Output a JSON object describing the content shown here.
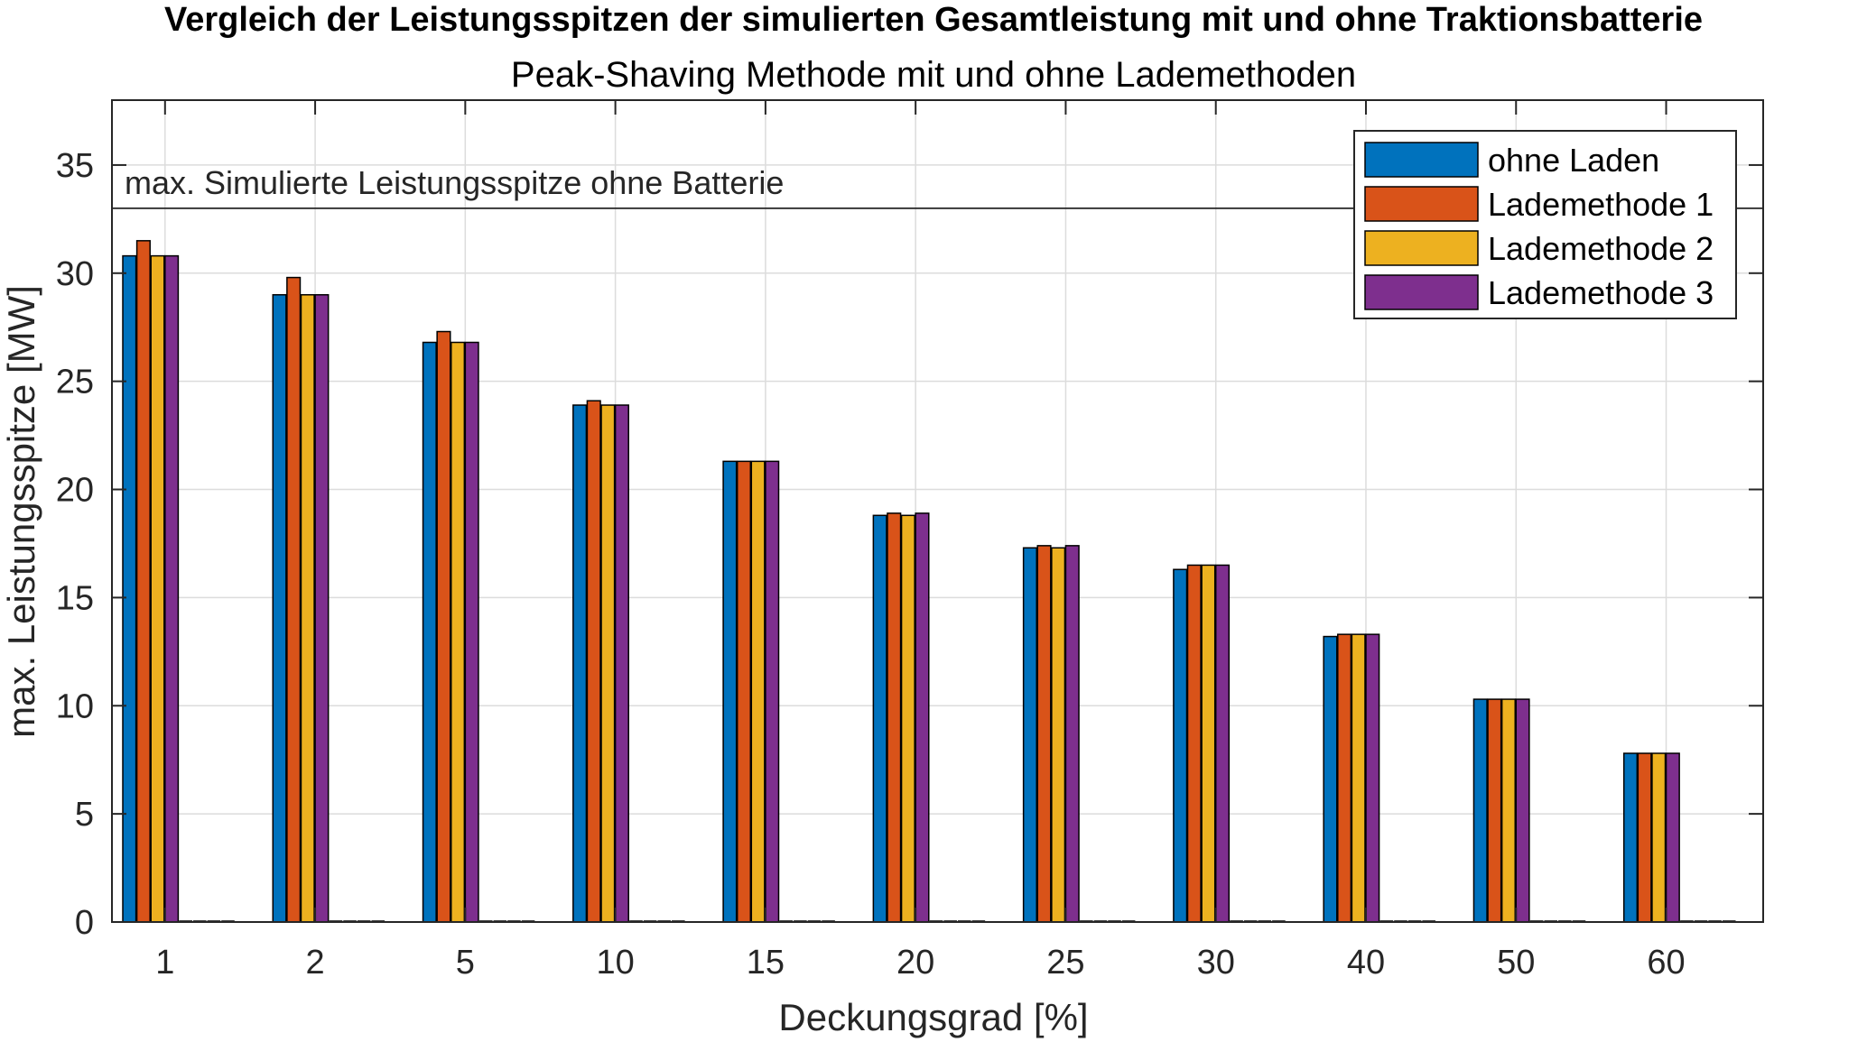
{
  "chart_data": {
    "type": "bar",
    "title": "Vergleich der Leistungsspitzen der simulierten Gesamtleistung mit und ohne Traktionsbatterie",
    "subtitle": "Peak-Shaving Methode mit und ohne Lademethoden",
    "xlabel": "Deckungsgrad [%]",
    "ylabel": "max. Leistungsspitze [MW]",
    "ylim": [
      0,
      38
    ],
    "yticks": [
      "0",
      "5",
      "10",
      "15",
      "20",
      "25",
      "30",
      "35"
    ],
    "grid": true,
    "legend_position": "top-right",
    "categories": [
      "1",
      "2",
      "5",
      "10",
      "15",
      "20",
      "25",
      "30",
      "40",
      "50",
      "60"
    ],
    "series": [
      {
        "name": "ohne Laden",
        "color": "#0072BD",
        "values": [
          30.8,
          29.0,
          26.8,
          23.9,
          21.3,
          18.8,
          17.3,
          16.3,
          13.2,
          10.3,
          7.8
        ]
      },
      {
        "name": "Lademethode 1",
        "color": "#D95319",
        "values": [
          31.5,
          29.8,
          27.3,
          24.1,
          21.3,
          18.9,
          17.4,
          16.5,
          13.3,
          10.3,
          7.8
        ]
      },
      {
        "name": "Lademethode 2",
        "color": "#EDB120",
        "values": [
          30.8,
          29.0,
          26.8,
          23.9,
          21.3,
          18.8,
          17.3,
          16.5,
          13.3,
          10.3,
          7.8
        ]
      },
      {
        "name": "Lademethode 3",
        "color": "#7E2F8E",
        "values": [
          30.8,
          29.0,
          26.8,
          23.9,
          21.3,
          18.9,
          17.4,
          16.5,
          13.3,
          10.3,
          7.8
        ]
      }
    ],
    "reference_line": {
      "y": 33.0,
      "label": "max. Simulierte Leistungsspitze ohne Batterie"
    }
  }
}
